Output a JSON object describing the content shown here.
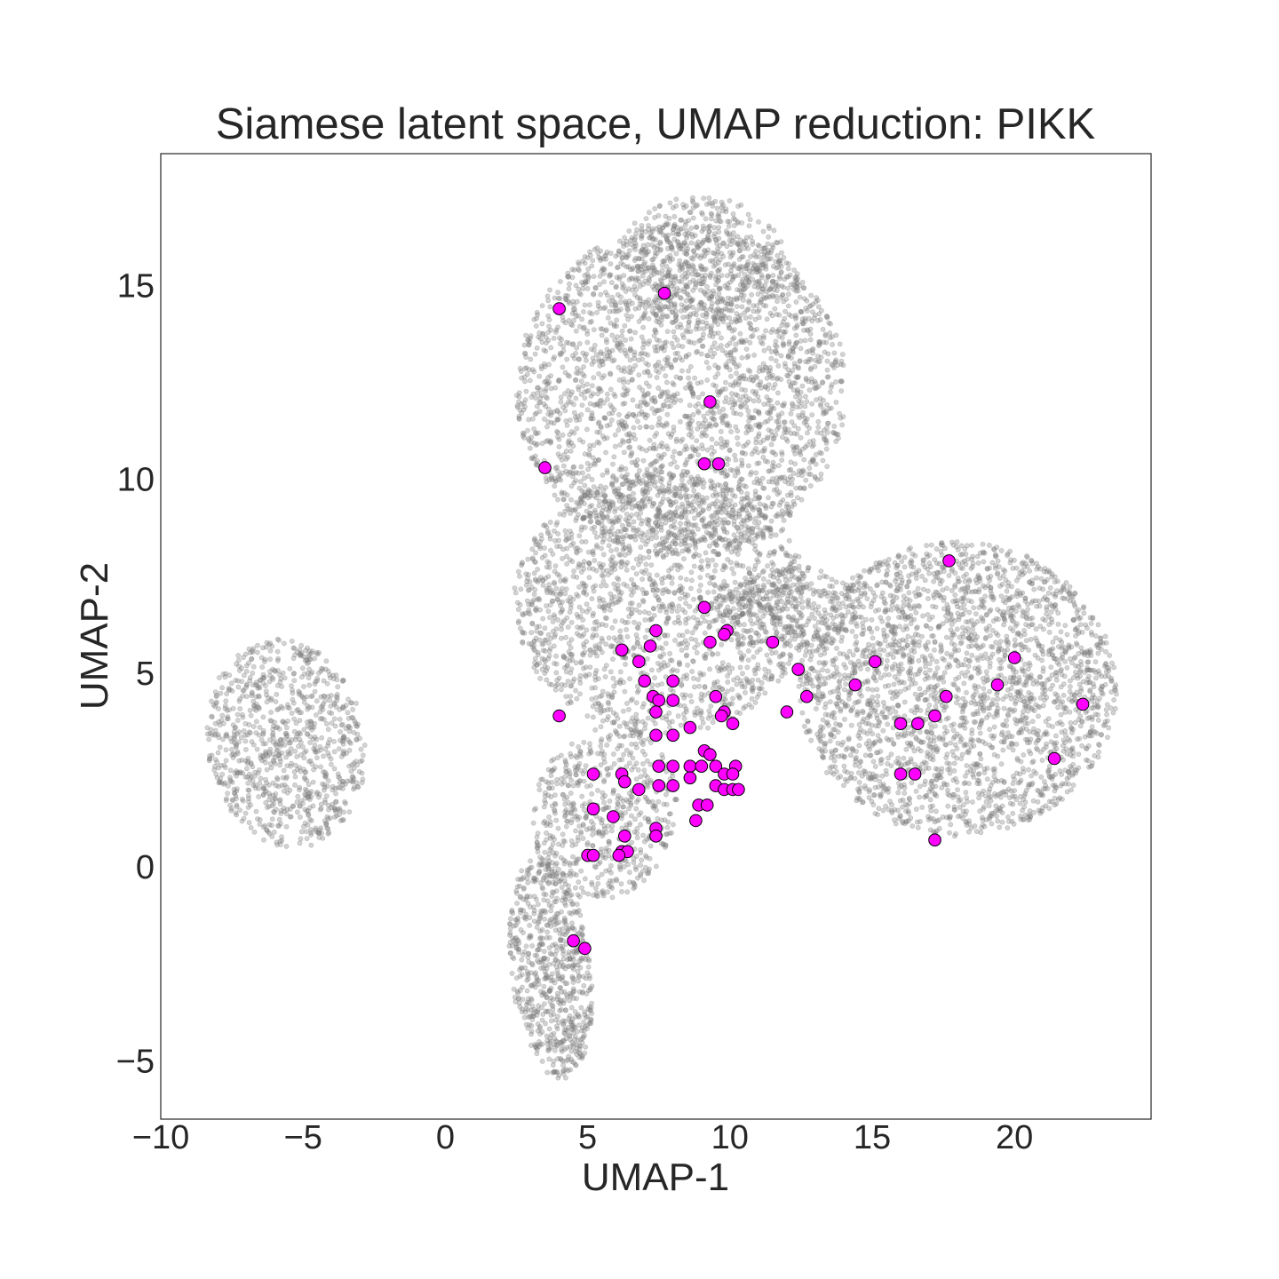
{
  "chart_data": {
    "type": "scatter",
    "title": "Siamese latent space, UMAP reduction: PIKK",
    "xlabel": "UMAP-1",
    "ylabel": "UMAP-2",
    "xlim": [
      -10,
      24.8
    ],
    "ylim": [
      -6.5,
      18.4
    ],
    "xticks": [
      -10,
      -5,
      0,
      5,
      10,
      15,
      20
    ],
    "yticks": [
      -5,
      0,
      5,
      10,
      15
    ],
    "grid": false,
    "legend": "none",
    "background": {
      "color": "#808080",
      "opacity": 0.35,
      "marker": "small-circle",
      "regions": [
        {
          "shape": "ellipse",
          "cx": -5.6,
          "cy": 3.2,
          "rx": 2.9,
          "ry": 2.6,
          "rotation": -35,
          "n": 900
        },
        {
          "shape": "ellipse",
          "cx": 8.3,
          "cy": 12.3,
          "rx": 5.8,
          "ry": 4.3,
          "rotation": 0,
          "n": 2600
        },
        {
          "shape": "ellipse",
          "cx": 9.0,
          "cy": 15.6,
          "rx": 3.0,
          "ry": 1.7,
          "rotation": 0,
          "n": 450
        },
        {
          "shape": "ellipse",
          "cx": 7.6,
          "cy": 6.8,
          "rx": 5.2,
          "ry": 3.4,
          "rotation": 0,
          "n": 1800
        },
        {
          "shape": "ellipse",
          "cx": 5.6,
          "cy": 1.4,
          "rx": 2.6,
          "ry": 2.2,
          "rotation": 20,
          "n": 600
        },
        {
          "shape": "ellipse",
          "cx": 3.7,
          "cy": -2.6,
          "rx": 1.4,
          "ry": 2.9,
          "rotation": 10,
          "n": 700
        },
        {
          "shape": "ellipse",
          "cx": 12.0,
          "cy": 6.6,
          "rx": 2.6,
          "ry": 1.2,
          "rotation": 0,
          "n": 300
        },
        {
          "shape": "ellipse",
          "cx": 18.0,
          "cy": 4.6,
          "rx": 5.6,
          "ry": 3.8,
          "rotation": 0,
          "n": 2600
        }
      ]
    },
    "series": [
      {
        "name": "PIKK",
        "color": "#ff00ff",
        "edgecolor": "#000000",
        "points": [
          [
            4.0,
            14.4
          ],
          [
            7.7,
            14.8
          ],
          [
            9.3,
            12.0
          ],
          [
            3.5,
            10.3
          ],
          [
            9.1,
            10.4
          ],
          [
            9.6,
            10.4
          ],
          [
            17.7,
            7.9
          ],
          [
            9.1,
            6.7
          ],
          [
            7.4,
            6.1
          ],
          [
            9.9,
            6.1
          ],
          [
            9.8,
            6.0
          ],
          [
            7.2,
            5.7
          ],
          [
            6.2,
            5.6
          ],
          [
            9.3,
            5.8
          ],
          [
            11.5,
            5.8
          ],
          [
            6.8,
            5.3
          ],
          [
            12.4,
            5.1
          ],
          [
            15.1,
            5.3
          ],
          [
            20.0,
            5.4
          ],
          [
            7.0,
            4.8
          ],
          [
            8.0,
            4.8
          ],
          [
            14.4,
            4.7
          ],
          [
            19.4,
            4.7
          ],
          [
            7.3,
            4.4
          ],
          [
            7.5,
            4.3
          ],
          [
            8.0,
            4.3
          ],
          [
            9.5,
            4.4
          ],
          [
            12.7,
            4.4
          ],
          [
            17.6,
            4.4
          ],
          [
            22.4,
            4.2
          ],
          [
            4.0,
            3.9
          ],
          [
            7.4,
            4.0
          ],
          [
            9.8,
            4.0
          ],
          [
            9.7,
            3.9
          ],
          [
            12.0,
            4.0
          ],
          [
            17.2,
            3.9
          ],
          [
            8.6,
            3.6
          ],
          [
            10.1,
            3.7
          ],
          [
            16.0,
            3.7
          ],
          [
            16.6,
            3.7
          ],
          [
            7.4,
            3.4
          ],
          [
            8.0,
            3.4
          ],
          [
            9.1,
            3.0
          ],
          [
            9.3,
            2.9
          ],
          [
            21.4,
            2.8
          ],
          [
            7.5,
            2.6
          ],
          [
            8.0,
            2.6
          ],
          [
            8.6,
            2.6
          ],
          [
            9.0,
            2.6
          ],
          [
            9.5,
            2.6
          ],
          [
            10.2,
            2.6
          ],
          [
            9.8,
            2.4
          ],
          [
            10.1,
            2.4
          ],
          [
            5.2,
            2.4
          ],
          [
            6.2,
            2.4
          ],
          [
            16.0,
            2.4
          ],
          [
            16.5,
            2.4
          ],
          [
            8.6,
            2.3
          ],
          [
            6.3,
            2.2
          ],
          [
            7.5,
            2.1
          ],
          [
            8.0,
            2.1
          ],
          [
            9.5,
            2.1
          ],
          [
            6.8,
            2.0
          ],
          [
            9.8,
            2.0
          ],
          [
            10.1,
            2.0
          ],
          [
            10.3,
            2.0
          ],
          [
            8.9,
            1.6
          ],
          [
            9.2,
            1.6
          ],
          [
            5.2,
            1.5
          ],
          [
            5.9,
            1.3
          ],
          [
            8.8,
            1.2
          ],
          [
            7.4,
            1.0
          ],
          [
            7.4,
            0.8
          ],
          [
            6.3,
            0.8
          ],
          [
            17.2,
            0.7
          ],
          [
            6.2,
            0.4
          ],
          [
            6.4,
            0.4
          ],
          [
            5.0,
            0.3
          ],
          [
            5.2,
            0.3
          ],
          [
            6.1,
            0.3
          ],
          [
            4.5,
            -1.9
          ],
          [
            4.9,
            -2.1
          ]
        ]
      }
    ]
  }
}
